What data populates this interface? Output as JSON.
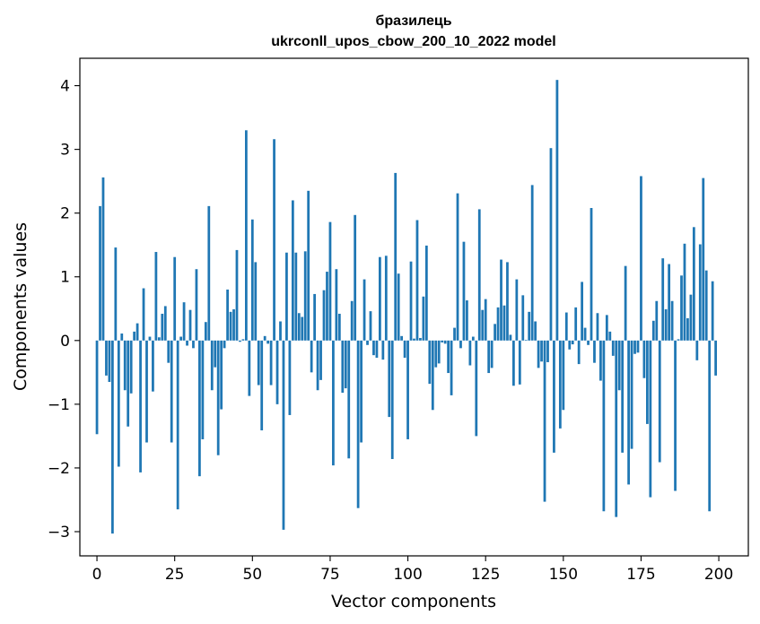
{
  "chart_data": {
    "type": "bar",
    "title": [
      "бразилець",
      "ukrconll_upos_cbow_200_10_2022 model"
    ],
    "xlabel": "Vector components",
    "ylabel": "Components values",
    "xlim": [
      -5.5,
      209.5
    ],
    "ylim": [
      -3.38,
      4.43
    ],
    "xticks": [
      0,
      25,
      50,
      75,
      100,
      125,
      150,
      175,
      200
    ],
    "yticks": [
      -3,
      -2,
      -1,
      0,
      1,
      2,
      3,
      4
    ],
    "xtick_labels": [
      "0",
      "25",
      "50",
      "75",
      "100",
      "125",
      "150",
      "175",
      "200"
    ],
    "ytick_labels": [
      "−3",
      "−2",
      "−1",
      "0",
      "1",
      "2",
      "3",
      "4"
    ],
    "grid": false,
    "bar_color": "#1f77b4",
    "x": [
      0,
      1,
      2,
      3,
      4,
      5,
      6,
      7,
      8,
      9,
      10,
      11,
      12,
      13,
      14,
      15,
      16,
      17,
      18,
      19,
      20,
      21,
      22,
      23,
      24,
      25,
      26,
      27,
      28,
      29,
      30,
      31,
      32,
      33,
      34,
      35,
      36,
      37,
      38,
      39,
      40,
      41,
      42,
      43,
      44,
      45,
      46,
      47,
      48,
      49,
      50,
      51,
      52,
      53,
      54,
      55,
      56,
      57,
      58,
      59,
      60,
      61,
      62,
      63,
      64,
      65,
      66,
      67,
      68,
      69,
      70,
      71,
      72,
      73,
      74,
      75,
      76,
      77,
      78,
      79,
      80,
      81,
      82,
      83,
      84,
      85,
      86,
      87,
      88,
      89,
      90,
      91,
      92,
      93,
      94,
      95,
      96,
      97,
      98,
      99,
      100,
      101,
      102,
      103,
      104,
      105,
      106,
      107,
      108,
      109,
      110,
      111,
      112,
      113,
      114,
      115,
      116,
      117,
      118,
      119,
      120,
      121,
      122,
      123,
      124,
      125,
      126,
      127,
      128,
      129,
      130,
      131,
      132,
      133,
      134,
      135,
      136,
      137,
      138,
      139,
      140,
      141,
      142,
      143,
      144,
      145,
      146,
      147,
      148,
      149,
      150,
      151,
      152,
      153,
      154,
      155,
      156,
      157,
      158,
      159,
      160,
      161,
      162,
      163,
      164,
      165,
      166,
      167,
      168,
      169,
      170,
      171,
      172,
      173,
      174,
      175,
      176,
      177,
      178,
      179,
      180,
      181,
      182,
      183,
      184,
      185,
      186,
      187,
      188,
      189,
      190,
      191,
      192,
      193,
      194,
      195,
      196,
      197,
      198,
      199
    ],
    "values": [
      -1.47,
      2.11,
      2.56,
      -0.55,
      -0.65,
      -3.03,
      1.46,
      -1.98,
      0.11,
      -0.78,
      -1.35,
      -0.83,
      0.14,
      0.27,
      -2.07,
      0.82,
      -1.6,
      0.06,
      -0.8,
      1.39,
      0.05,
      0.42,
      0.54,
      -0.35,
      -1.6,
      1.31,
      -2.65,
      0.06,
      0.6,
      -0.08,
      0.48,
      -0.12,
      1.12,
      -2.13,
      -1.55,
      0.29,
      2.11,
      -0.78,
      -0.42,
      -1.8,
      -1.08,
      -0.12,
      0.8,
      0.45,
      0.49,
      1.42,
      -0.02,
      0.02,
      3.3,
      -0.87,
      1.9,
      1.23,
      -0.7,
      -1.41,
      0.07,
      -0.05,
      -0.7,
      3.16,
      -1.0,
      0.3,
      -2.97,
      1.38,
      -1.17,
      2.2,
      1.38,
      0.43,
      0.37,
      1.4,
      2.35,
      -0.5,
      0.73,
      -0.78,
      -0.62,
      0.79,
      1.08,
      1.86,
      -1.96,
      1.12,
      0.42,
      -0.82,
      -0.75,
      -1.85,
      0.62,
      1.97,
      -2.63,
      -1.6,
      0.96,
      -0.07,
      0.46,
      -0.23,
      -0.27,
      1.31,
      -0.3,
      1.33,
      -1.2,
      -1.86,
      2.63,
      1.05,
      0.07,
      -0.27,
      -1.55,
      1.24,
      0.03,
      1.89,
      0.04,
      0.69,
      1.49,
      -0.68,
      -1.09,
      -0.42,
      -0.36,
      -0.03,
      -0.05,
      -0.51,
      -0.86,
      0.2,
      2.31,
      -0.12,
      1.55,
      0.63,
      -0.39,
      0.06,
      -1.5,
      2.06,
      0.48,
      0.65,
      -0.51,
      -0.43,
      0.26,
      0.52,
      1.27,
      0.55,
      1.23,
      0.09,
      -0.71,
      0.96,
      -0.69,
      0.71,
      0.01,
      0.45,
      2.44,
      0.3,
      -0.43,
      -0.33,
      -2.53,
      -0.34,
      3.02,
      -1.76,
      4.09,
      -1.38,
      -1.09,
      0.44,
      -0.14,
      -0.06,
      0.52,
      -0.37,
      0.92,
      0.2,
      -0.07,
      2.08,
      -0.35,
      0.43,
      -0.63,
      -2.68,
      0.4,
      0.14,
      -0.24,
      -2.77,
      -0.78,
      -1.76,
      1.17,
      -2.26,
      -1.7,
      -0.21,
      -0.19,
      2.58,
      -0.59,
      -1.31,
      -2.46,
      0.31,
      0.62,
      -1.91,
      1.29,
      0.49,
      1.2,
      0.62,
      -2.36,
      0.02,
      1.02,
      1.52,
      0.35,
      0.72,
      1.78,
      -0.31,
      1.51,
      2.55,
      1.1,
      -2.68,
      0.93,
      -0.55
    ]
  }
}
